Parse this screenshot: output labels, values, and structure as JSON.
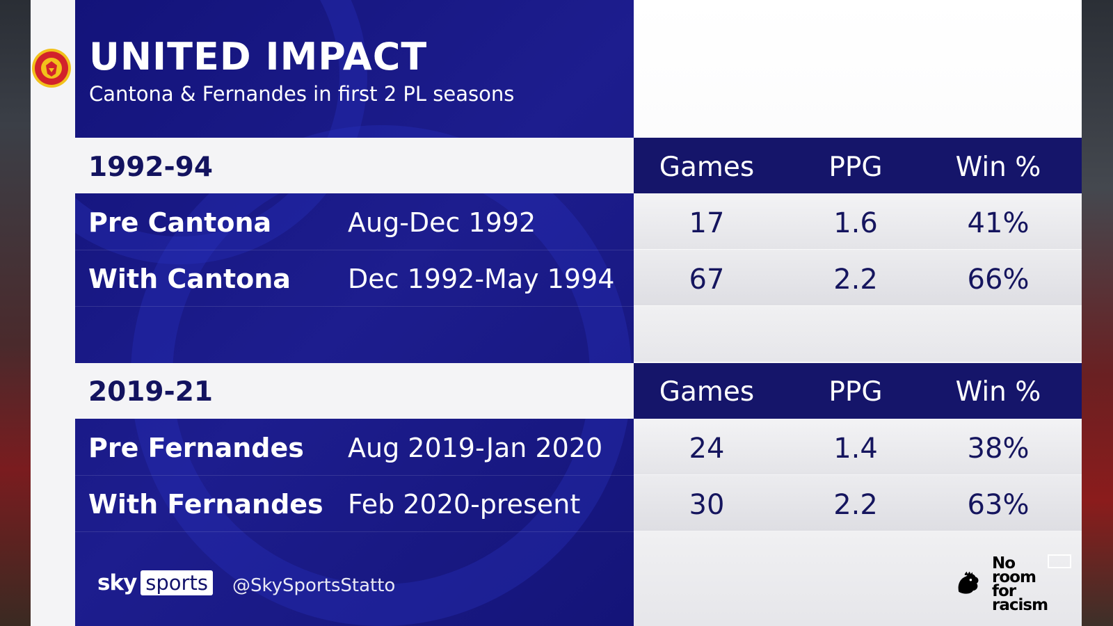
{
  "header": {
    "title": "UNITED IMPACT",
    "subtitle": "Cantona & Fernandes in first 2 PL seasons"
  },
  "columns": [
    "Games",
    "PPG",
    "Win %"
  ],
  "sections": [
    {
      "label": "1992-94",
      "rows": [
        {
          "name": "Pre Cantona",
          "period": "Aug-Dec 1992",
          "games": "17",
          "ppg": "1.6",
          "win": "41%"
        },
        {
          "name": "With Cantona",
          "period": "Dec 1992-May 1994",
          "games": "67",
          "ppg": "2.2",
          "win": "66%"
        }
      ]
    },
    {
      "label": "2019-21",
      "rows": [
        {
          "name": "Pre Fernandes",
          "period": "Aug 2019-Jan 2020",
          "games": "24",
          "ppg": "1.4",
          "win": "38%"
        },
        {
          "name": "With Fernandes",
          "period": "Feb 2020-present",
          "games": "30",
          "ppg": "2.2",
          "win": "63%"
        }
      ]
    }
  ],
  "footer": {
    "sky": "sky",
    "sports": "sports",
    "handle": "@SkySportsStatto",
    "campaign": [
      "No",
      "room",
      "for",
      "racism"
    ]
  },
  "colors": {
    "navy": "#13137a",
    "dark_navy": "#15156a",
    "text_navy": "#15155e",
    "white": "#ffffff"
  }
}
